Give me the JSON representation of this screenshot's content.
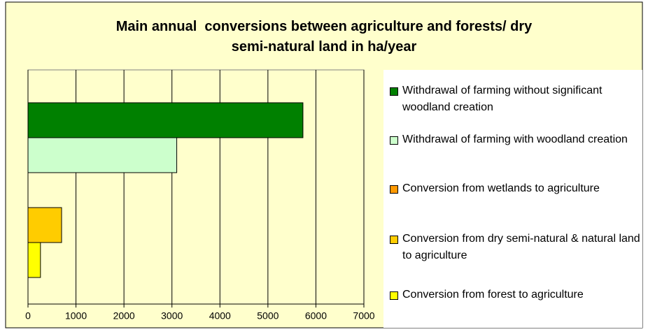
{
  "chart_data": {
    "type": "bar",
    "orientation": "horizontal",
    "title": "Main annual  conversions between agriculture and forests/ dry semi-natural land in ha/year",
    "categories": [
      null
    ],
    "series": [
      {
        "name": "Withdrawal of farming without significant woodland creation",
        "color": "#008000",
        "values": [
          5730
        ]
      },
      {
        "name": "Withdrawal of farming with woodland creation",
        "color": "#CCFFCC",
        "values": [
          3100
        ]
      },
      {
        "name": "Conversion from wetlands to agriculture",
        "color": "#FF9900",
        "values": [
          0
        ]
      },
      {
        "name": "Conversion from dry semi-natural & natural land to agriculture",
        "color": "#FFCC00",
        "values": [
          700
        ]
      },
      {
        "name": "Conversion from forest to agriculture",
        "color": "#FFFF00",
        "values": [
          260
        ]
      }
    ],
    "xlim": [
      0,
      7000
    ],
    "xticks": [
      0,
      1000,
      2000,
      3000,
      4000,
      5000,
      6000,
      7000
    ],
    "grid": true,
    "legend": "right"
  }
}
